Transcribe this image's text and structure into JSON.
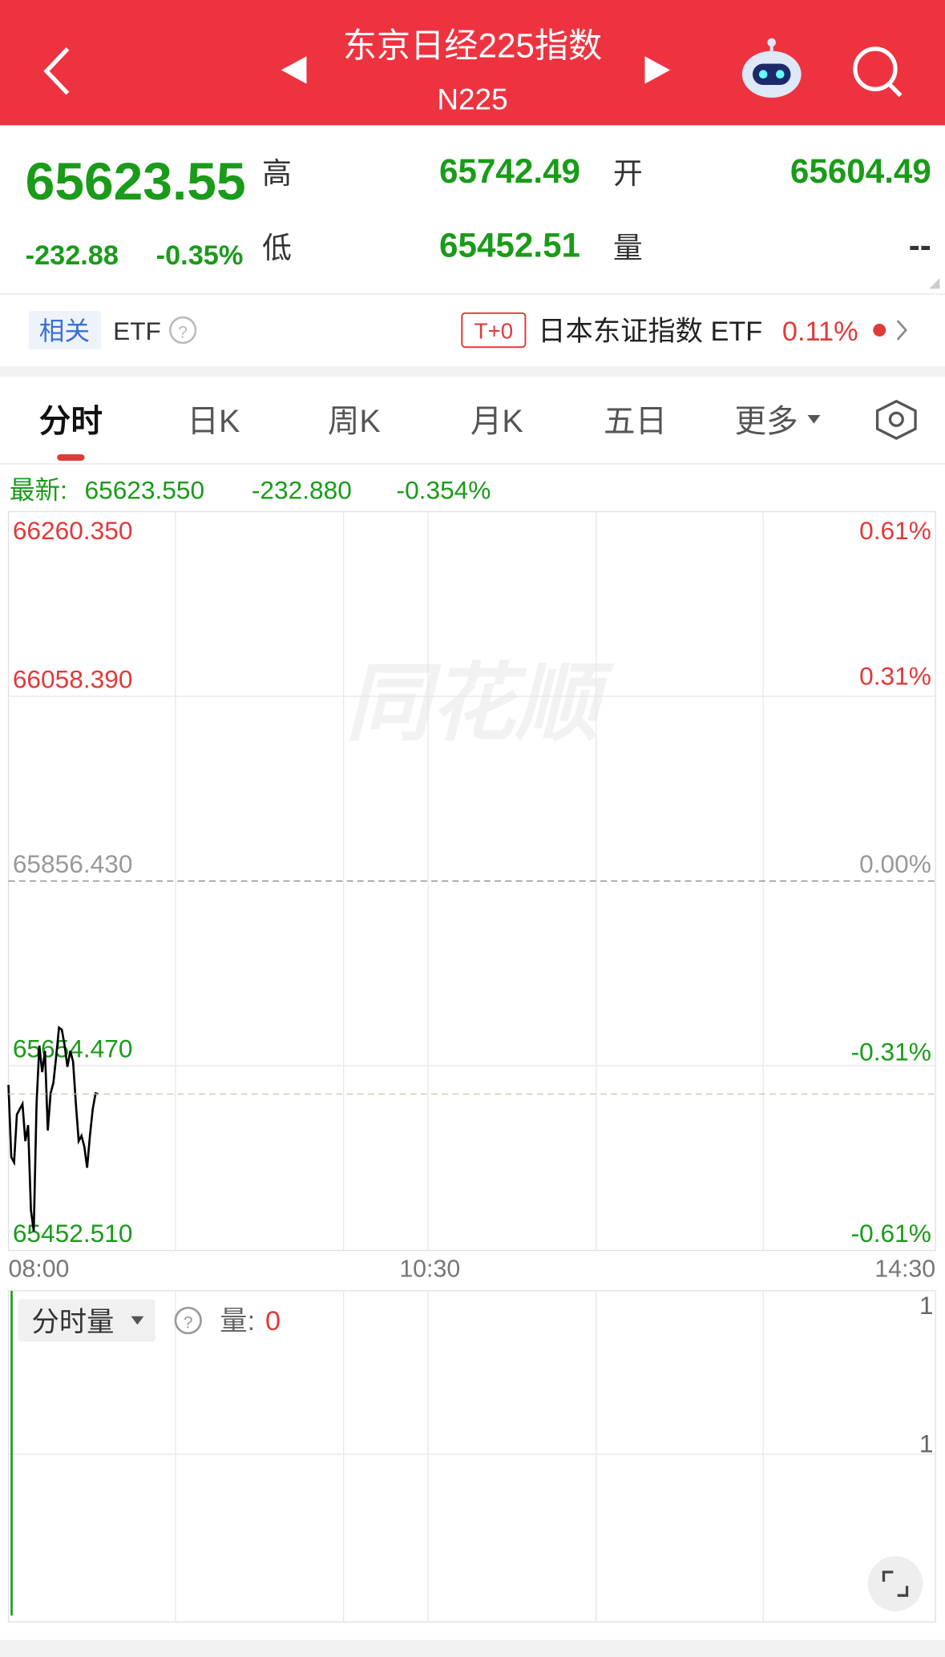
{
  "header": {
    "title": "东京日经225指数",
    "subtitle": "N225"
  },
  "quote": {
    "price": "65623.55",
    "change": "-232.88",
    "change_pct": "-0.35%",
    "high_label": "高",
    "high": "65742.49",
    "low_label": "低",
    "low": "65452.51",
    "open_label": "开",
    "open": "65604.49",
    "volume_label": "量",
    "volume": "--"
  },
  "etf": {
    "tag": "相关",
    "label": "ETF",
    "badge": "T+0",
    "name": "日本东证指数 ETF",
    "change": "0.11%"
  },
  "tabs": [
    "分时",
    "日K",
    "周K",
    "月K",
    "五日",
    "更多"
  ],
  "latest": {
    "label": "最新:",
    "price": "65623.550",
    "change": "-232.880",
    "change_pct": "-0.354%"
  },
  "watermark": "同花顺",
  "chart_data": {
    "type": "line",
    "x": [
      0,
      1,
      2,
      3,
      4,
      5,
      6,
      7,
      8,
      9,
      10,
      11,
      12,
      13,
      14,
      15,
      16,
      17,
      18,
      19,
      20,
      21,
      22,
      23,
      24,
      25,
      26,
      27,
      28,
      29,
      30,
      31,
      32
    ],
    "series": [
      {
        "color": "#000000",
        "values": [
          65633.6,
          65554.6,
          65548.8,
          65601.1,
          65606.9,
          65612.7,
          65572.1,
          65589.5,
          65496.6,
          65473.4,
          65612.7,
          65676.5,
          65647.5,
          65670.7,
          65583.7,
          65624.3,
          65635.9,
          65664.9,
          65696.2,
          65693.9,
          65676.5,
          65653.3,
          65670.7,
          65659.1,
          65612.7,
          65572.1,
          65577.9,
          65566.2,
          65543.0,
          65577.9,
          65606.9,
          65624.3,
          65623.55
        ]
      }
    ],
    "xlim": [
      0,
      330
    ],
    "xticks": [
      {
        "value": 0,
        "label": "08:00"
      },
      {
        "value": 150,
        "label": "10:30"
      },
      {
        "value": 330,
        "label": "14:30"
      }
    ],
    "ylim": [
      65452.51,
      66260.35
    ],
    "yticks": [
      {
        "value": 66260.35,
        "label": "66260.350"
      },
      {
        "value": 66058.39,
        "label": "66058.390"
      },
      {
        "value": 65856.43,
        "label": "65856.430"
      },
      {
        "value": 65654.47,
        "label": "65654.470"
      },
      {
        "value": 65452.51,
        "label": "65452.510"
      }
    ],
    "y2lim": [
      -0.61,
      0.61
    ],
    "y2ticks": [
      {
        "value": 0.61,
        "label": "0.61%"
      },
      {
        "value": 0.31,
        "label": "0.31%"
      },
      {
        "value": 0,
        "label": "0.00%"
      },
      {
        "value": -0.31,
        "label": "-0.31%"
      },
      {
        "value": -0.61,
        "label": "-0.61%"
      }
    ]
  },
  "volume": {
    "selector": "分时量",
    "label": "量:",
    "value": "0",
    "ticks": [
      "1",
      "1"
    ]
  }
}
